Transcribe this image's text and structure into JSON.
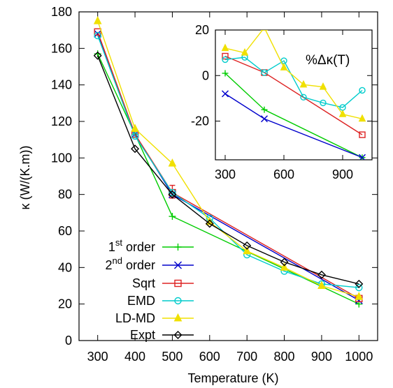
{
  "chart_data": [
    {
      "type": "line",
      "title": "",
      "xlabel": "Temperature (K)",
      "ylabel": "κ (W/(K.m))",
      "xlim": [
        250,
        1050
      ],
      "ylim": [
        0,
        180
      ],
      "x_ticks": [
        300,
        400,
        500,
        600,
        700,
        800,
        900,
        1000
      ],
      "y_ticks": [
        0,
        20,
        40,
        60,
        80,
        100,
        120,
        140,
        160,
        180
      ],
      "grid": false,
      "legend_position": "bottom-left",
      "series": [
        {
          "id": "first",
          "color": "#00cc00",
          "marker": "plus",
          "legend": {
            "main": "1",
            "sup": "st",
            "rest": " order"
          },
          "x": [
            300,
            400,
            500,
            1000
          ],
          "y": [
            157,
            113,
            68,
            20
          ]
        },
        {
          "id": "second",
          "color": "#0000cc",
          "marker": "cross",
          "legend": {
            "main": "2",
            "sup": "nd",
            "rest": " order"
          },
          "x": [
            300,
            400,
            500,
            1000
          ],
          "y": [
            168,
            113,
            80,
            22
          ]
        },
        {
          "id": "sqrt",
          "name": "Sqrt",
          "color": "#dd2222",
          "marker": "square",
          "x": [
            300,
            400,
            500,
            1000
          ],
          "y": [
            169,
            113,
            81,
            23
          ],
          "error_bar": {
            "x": 500,
            "low": 78,
            "high": 85
          }
        },
        {
          "id": "emd",
          "name": "EMD",
          "color": "#00cccc",
          "marker": "circle",
          "x": [
            300,
            400,
            500,
            600,
            700,
            800,
            900,
            1000
          ],
          "y": [
            167,
            112,
            81,
            67,
            47,
            38,
            31,
            29
          ]
        },
        {
          "id": "ldmd",
          "name": "LD-MD",
          "color": "#f0e000",
          "marker": "triangle",
          "x": [
            300,
            400,
            500,
            600,
            700,
            800,
            900,
            1000
          ],
          "y": [
            175,
            116,
            97,
            65,
            49,
            40,
            30,
            24
          ]
        },
        {
          "id": "expt",
          "name": "Expt",
          "color": "#000000",
          "marker": "diamond",
          "x": [
            300,
            400,
            500,
            600,
            700,
            800,
            900,
            1000
          ],
          "y": [
            156,
            105,
            80,
            64,
            52,
            43,
            36,
            31
          ]
        }
      ]
    },
    {
      "type": "line",
      "title": "",
      "annotation": "%Δκ(T)",
      "xlim": [
        250,
        1050
      ],
      "ylim": [
        -37,
        20
      ],
      "x_ticks": [
        300,
        600,
        900
      ],
      "y_ticks": [
        -20,
        0,
        20
      ],
      "grid": false,
      "series": [
        {
          "id": "first",
          "color": "#00cc00",
          "marker": "plus",
          "x": [
            300,
            500,
            1000
          ],
          "y": [
            1,
            -15,
            -36
          ]
        },
        {
          "id": "second",
          "color": "#0000cc",
          "marker": "cross",
          "x": [
            300,
            500,
            1000
          ],
          "y": [
            -8,
            -19,
            -36
          ]
        },
        {
          "id": "sqrt",
          "color": "#dd2222",
          "marker": "square",
          "x": [
            300,
            500,
            1000
          ],
          "y": [
            8.5,
            1.3,
            -26
          ]
        },
        {
          "id": "emd",
          "color": "#00cccc",
          "marker": "circle",
          "x": [
            300,
            400,
            500,
            600,
            700,
            800,
            900,
            1000
          ],
          "y": [
            7,
            8,
            1.3,
            6.5,
            -9.5,
            -12,
            -14,
            -6.5
          ]
        },
        {
          "id": "ldmd",
          "color": "#f0e000",
          "marker": "triangle",
          "x": [
            300,
            400,
            500,
            600,
            700,
            800,
            900,
            1000
          ],
          "y": [
            12,
            10,
            21,
            3.5,
            -4,
            -5,
            -17,
            -19
          ]
        }
      ]
    }
  ]
}
